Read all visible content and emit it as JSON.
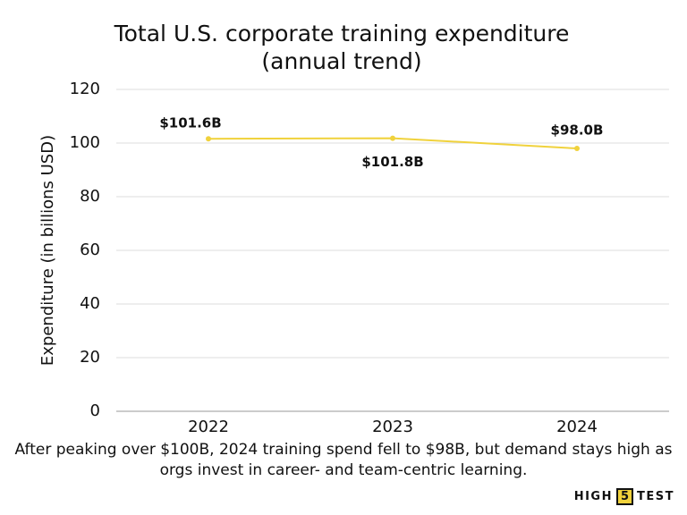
{
  "chart_data": {
    "type": "line",
    "title": "Total U.S. corporate training expenditure (annual trend)",
    "y_label": "Expenditure (in billions USD)",
    "categories": [
      "2022",
      "2023",
      "2024"
    ],
    "values": [
      101.6,
      101.8,
      98.0
    ],
    "value_labels": [
      "$101.6B",
      "$101.8B",
      "$98.0B"
    ],
    "color": "#f0d23c",
    "ylim": [
      0,
      120
    ],
    "yticks": [
      0,
      20,
      40,
      60,
      80,
      100,
      120
    ],
    "grid": true,
    "caption": "After peaking over $100B, 2024 training spend fell to $98B, but demand stays high as orgs invest in career- and team-centric learning."
  },
  "logo": {
    "parts": [
      "HIGH",
      "5",
      "TEST"
    ]
  }
}
